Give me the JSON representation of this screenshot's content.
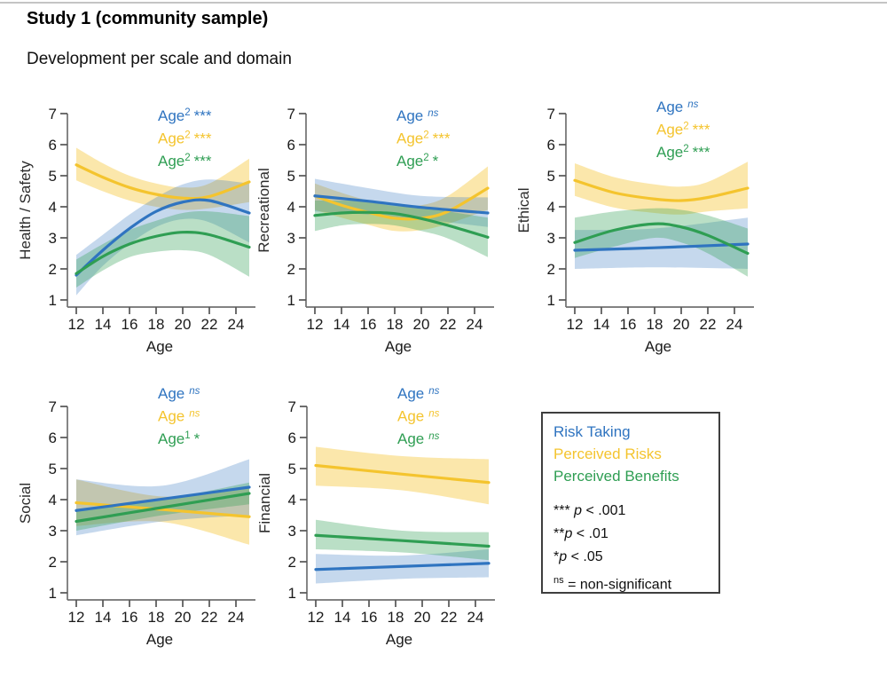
{
  "page": {
    "title": "Study 1 (community sample)",
    "subtitle": "Development per scale and domain"
  },
  "colors": {
    "risk_taking": "#2F74C0",
    "perceived_risks": "#F4C42E",
    "perceived_benefits": "#2F9E53",
    "band_risk_taking": "rgba(47,116,192,0.28)",
    "band_perceived_risks": "rgba(244,196,46,0.40)",
    "band_perceived_benefits": "rgba(47,158,83,0.33)",
    "axis": "#707070",
    "tick": "#555555",
    "label": "#1a1a1a",
    "rule": "#c4c4c4"
  },
  "chart_data": {
    "type": "line",
    "xlabel": "Age",
    "x_ticks": [
      12,
      14,
      16,
      18,
      20,
      22,
      24
    ],
    "x_range": [
      12,
      25
    ],
    "y_ticks": [
      1,
      2,
      3,
      4,
      5,
      6,
      7
    ],
    "ylim": [
      1,
      7
    ],
    "grid": false,
    "panels": [
      {
        "id": "health-safety",
        "ylabel": "Health / Safety",
        "annotations": [
          {
            "series": "risk_taking",
            "label": "Age",
            "sup": "2",
            "sig": "***"
          },
          {
            "series": "perceived_risks",
            "label": "Age",
            "sup": "2",
            "sig": "***"
          },
          {
            "series": "perceived_benefits",
            "label": "Age",
            "sup": "2",
            "sig": "***"
          }
        ],
        "series": [
          {
            "key": "perceived_risks",
            "name": "Perceived Risks",
            "x": [
              12,
              14,
              16,
              18,
              20,
              22,
              25
            ],
            "y": [
              5.35,
              4.95,
              4.62,
              4.4,
              4.28,
              4.33,
              4.8
            ],
            "lo": [
              4.85,
              4.5,
              4.2,
              4.0,
              3.9,
              3.95,
              4.15
            ],
            "hi": [
              5.9,
              5.4,
              5.0,
              4.75,
              4.62,
              4.75,
              5.55
            ]
          },
          {
            "key": "risk_taking",
            "name": "Risk Taking",
            "x": [
              12,
              14,
              16,
              18,
              20,
              22,
              25
            ],
            "y": [
              1.8,
              2.6,
              3.3,
              3.85,
              4.15,
              4.2,
              3.8
            ],
            "lo": [
              1.15,
              2.1,
              2.8,
              3.35,
              3.6,
              3.5,
              2.85
            ],
            "hi": [
              2.45,
              3.1,
              3.75,
              4.3,
              4.72,
              4.88,
              4.75
            ]
          },
          {
            "key": "perceived_benefits",
            "name": "Perceived Benefits",
            "x": [
              12,
              14,
              16,
              18,
              20,
              22,
              25
            ],
            "y": [
              1.85,
              2.4,
              2.8,
              3.05,
              3.18,
              3.1,
              2.7
            ],
            "lo": [
              1.4,
              1.95,
              2.38,
              2.55,
              2.6,
              2.45,
              1.75
            ],
            "hi": [
              2.3,
              2.8,
              3.25,
              3.55,
              3.8,
              3.85,
              3.7
            ]
          }
        ]
      },
      {
        "id": "recreational",
        "ylabel": "Recreational",
        "annotations": [
          {
            "series": "risk_taking",
            "label": "Age",
            "sup": "",
            "sig": "ns"
          },
          {
            "series": "perceived_risks",
            "label": "Age",
            "sup": "2",
            "sig": "***"
          },
          {
            "series": "perceived_benefits",
            "label": "Age",
            "sup": "2",
            "sig": "*"
          }
        ],
        "series": [
          {
            "key": "perceived_risks",
            "name": "Perceived Risks",
            "x": [
              12,
              14,
              16,
              18,
              20,
              22,
              25
            ],
            "y": [
              4.35,
              4.05,
              3.82,
              3.63,
              3.63,
              3.85,
              4.6
            ],
            "lo": [
              3.9,
              3.65,
              3.42,
              3.22,
              3.25,
              3.45,
              3.9
            ],
            "hi": [
              4.75,
              4.45,
              4.2,
              4.02,
              4.05,
              4.35,
              5.3
            ]
          },
          {
            "key": "risk_taking",
            "name": "Risk Taking",
            "x": [
              12,
              16,
              20,
              25
            ],
            "y": [
              4.35,
              4.18,
              3.98,
              3.8
            ],
            "lo": [
              3.85,
              3.75,
              3.6,
              3.35
            ],
            "hi": [
              4.9,
              4.6,
              4.35,
              4.3
            ]
          },
          {
            "key": "perceived_benefits",
            "name": "Perceived Benefits",
            "x": [
              12,
              14,
              16,
              18,
              20,
              22,
              25
            ],
            "y": [
              3.72,
              3.8,
              3.82,
              3.78,
              3.62,
              3.4,
              3.02
            ],
            "lo": [
              3.22,
              3.4,
              3.45,
              3.4,
              3.22,
              2.98,
              2.38
            ],
            "hi": [
              4.2,
              4.2,
              4.18,
              4.1,
              4.0,
              3.85,
              3.65
            ]
          }
        ]
      },
      {
        "id": "ethical",
        "ylabel": "Ethical",
        "annotations": [
          {
            "series": "risk_taking",
            "label": "Age",
            "sup": "",
            "sig": "ns"
          },
          {
            "series": "perceived_risks",
            "label": "Age",
            "sup": "2",
            "sig": "***"
          },
          {
            "series": "perceived_benefits",
            "label": "Age",
            "sup": "2",
            "sig": "***"
          }
        ],
        "series": [
          {
            "key": "perceived_risks",
            "name": "Perceived Risks",
            "x": [
              12,
              15,
              18,
              20,
              22,
              25
            ],
            "y": [
              4.85,
              4.45,
              4.25,
              4.2,
              4.3,
              4.6
            ],
            "lo": [
              4.35,
              3.97,
              3.8,
              3.75,
              3.85,
              3.95
            ],
            "hi": [
              5.4,
              4.95,
              4.72,
              4.65,
              4.8,
              5.45
            ]
          },
          {
            "key": "risk_taking",
            "name": "Risk Taking",
            "x": [
              12,
              18,
              25
            ],
            "y": [
              2.6,
              2.68,
              2.8
            ],
            "lo": [
              2.0,
              2.05,
              2.0
            ],
            "hi": [
              3.25,
              3.3,
              3.65
            ]
          },
          {
            "key": "perceived_benefits",
            "name": "Perceived Benefits",
            "x": [
              12,
              15,
              18,
              20,
              22,
              25
            ],
            "y": [
              2.85,
              3.25,
              3.45,
              3.35,
              3.08,
              2.5
            ],
            "lo": [
              2.35,
              2.72,
              3.0,
              2.85,
              2.5,
              1.75
            ],
            "hi": [
              3.65,
              3.85,
              3.95,
              3.9,
              3.72,
              3.3
            ]
          }
        ]
      },
      {
        "id": "social",
        "ylabel": "Social",
        "annotations": [
          {
            "series": "risk_taking",
            "label": "Age",
            "sup": "",
            "sig": "ns"
          },
          {
            "series": "perceived_risks",
            "label": "Age",
            "sup": "",
            "sig": "ns"
          },
          {
            "series": "perceived_benefits",
            "label": "Age",
            "sup": "1",
            "sig": "*"
          }
        ],
        "series": [
          {
            "key": "perceived_risks",
            "name": "Perceived Risks",
            "x": [
              12,
              18.5,
              25
            ],
            "y": [
              3.9,
              3.68,
              3.45
            ],
            "lo": [
              3.15,
              3.28,
              2.55
            ],
            "hi": [
              4.65,
              4.1,
              4.35
            ]
          },
          {
            "key": "risk_taking",
            "name": "Risk Taking",
            "x": [
              12,
              18.5,
              25
            ],
            "y": [
              3.65,
              4.02,
              4.4
            ],
            "lo": [
              2.85,
              3.3,
              3.5
            ],
            "hi": [
              4.65,
              4.45,
              5.3
            ]
          },
          {
            "key": "perceived_benefits",
            "name": "Perceived Benefits",
            "x": [
              12,
              18.5,
              25
            ],
            "y": [
              3.3,
              3.75,
              4.2
            ],
            "lo": [
              3.0,
              3.5,
              3.85
            ],
            "hi": [
              3.62,
              4.0,
              4.55
            ]
          }
        ]
      },
      {
        "id": "financial",
        "ylabel": "Financial",
        "annotations": [
          {
            "series": "risk_taking",
            "label": "Age",
            "sup": "",
            "sig": "ns"
          },
          {
            "series": "perceived_risks",
            "label": "Age",
            "sup": "",
            "sig": "ns"
          },
          {
            "series": "perceived_benefits",
            "label": "Age",
            "sup": "",
            "sig": "ns"
          }
        ],
        "series": [
          {
            "key": "perceived_risks",
            "name": "Perceived Risks",
            "x": [
              12,
              18.5,
              25
            ],
            "y": [
              5.1,
              4.82,
              4.55
            ],
            "lo": [
              4.45,
              4.3,
              3.85
            ],
            "hi": [
              5.7,
              5.4,
              5.3
            ]
          },
          {
            "key": "risk_taking",
            "name": "Risk Taking",
            "x": [
              12,
              18.5,
              25
            ],
            "y": [
              1.75,
              1.85,
              1.95
            ],
            "lo": [
              1.3,
              1.45,
              1.5
            ],
            "hi": [
              2.25,
              2.2,
              2.4
            ]
          },
          {
            "key": "perceived_benefits",
            "name": "Perceived Benefits",
            "x": [
              12,
              18.5,
              25
            ],
            "y": [
              2.85,
              2.68,
              2.5
            ],
            "lo": [
              2.4,
              2.3,
              2.05
            ],
            "hi": [
              3.35,
              3.0,
              2.95
            ]
          }
        ]
      }
    ]
  },
  "legend": {
    "series": [
      {
        "key": "risk_taking",
        "label": "Risk Taking"
      },
      {
        "key": "perceived_risks",
        "label": "Perceived Risks"
      },
      {
        "key": "perceived_benefits",
        "label": "Perceived Benefits"
      }
    ],
    "notes": [
      {
        "marker": "***",
        "sup_marker": false,
        "space_before_p": true,
        "p": "p",
        "rest": " < .001"
      },
      {
        "marker": "**",
        "sup_marker": false,
        "space_before_p": false,
        "p": "p",
        "rest": " < .01"
      },
      {
        "marker": "*",
        "sup_marker": false,
        "space_before_p": false,
        "p": "p",
        "rest": " < .05"
      },
      {
        "marker": "ns",
        "sup_marker": true,
        "space_before_p": false,
        "p": "",
        "rest": " = non-significant"
      }
    ]
  }
}
